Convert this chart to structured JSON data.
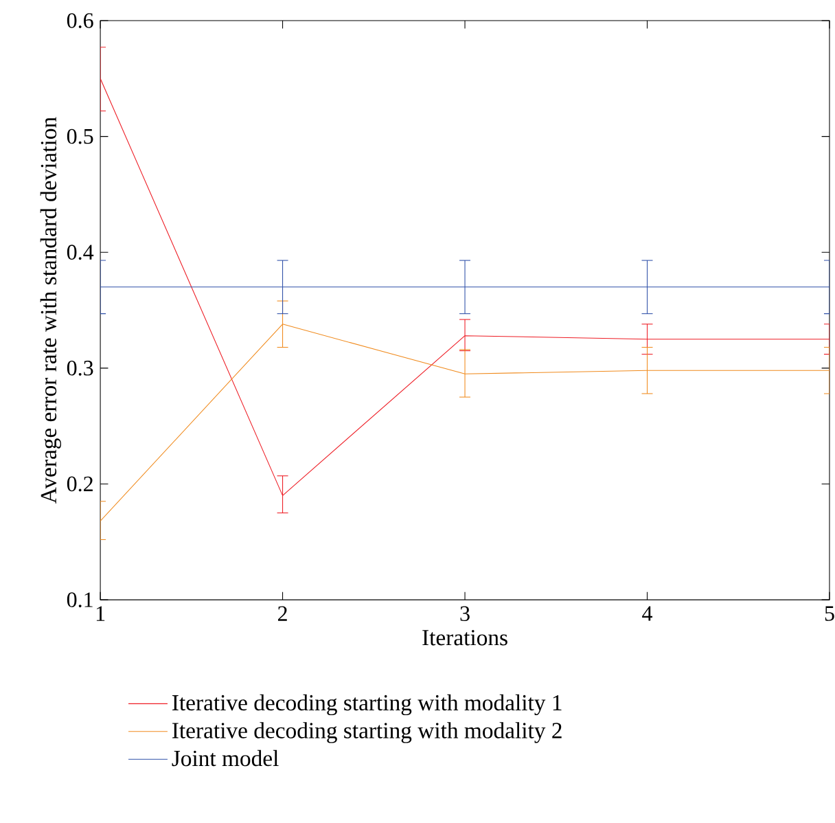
{
  "chart_data": {
    "type": "line",
    "xlabel": "Iterations",
    "ylabel": "Average error rate with standard deviation",
    "x": [
      1,
      2,
      3,
      4,
      5
    ],
    "xlim": [
      1,
      5
    ],
    "ylim": [
      0.1,
      0.6
    ],
    "xticks": [
      1,
      2,
      3,
      4,
      5
    ],
    "yticks": [
      0.1,
      0.2,
      0.3,
      0.4,
      0.5,
      0.6
    ],
    "legend": "bottom",
    "marker": "none",
    "line_style": "solid",
    "series": [
      {
        "name": "Iterative decoding starting with modality 1",
        "color": "#ee1c24",
        "values": [
          0.55,
          0.19,
          0.328,
          0.325,
          0.325
        ],
        "errors": [
          [
            0.522,
            0.577
          ],
          [
            0.175,
            0.207
          ],
          [
            0.315,
            0.342
          ],
          [
            0.312,
            0.338
          ],
          [
            0.312,
            0.338
          ]
        ]
      },
      {
        "name": "Iterative decoding starting with modality 2",
        "color": "#f08a1c",
        "values": [
          0.168,
          0.338,
          0.295,
          0.298,
          0.298
        ],
        "errors": [
          [
            0.152,
            0.185
          ],
          [
            0.318,
            0.358
          ],
          [
            0.275,
            0.316
          ],
          [
            0.278,
            0.318
          ],
          [
            0.278,
            0.318
          ]
        ]
      },
      {
        "name": "Joint model",
        "color": "#2e4fa8",
        "values": [
          0.37,
          0.37,
          0.37,
          0.37,
          0.37
        ],
        "errors": [
          [
            0.347,
            0.393
          ],
          [
            0.347,
            0.393
          ],
          [
            0.347,
            0.393
          ],
          [
            0.347,
            0.393
          ],
          [
            0.347,
            0.393
          ]
        ]
      }
    ]
  }
}
